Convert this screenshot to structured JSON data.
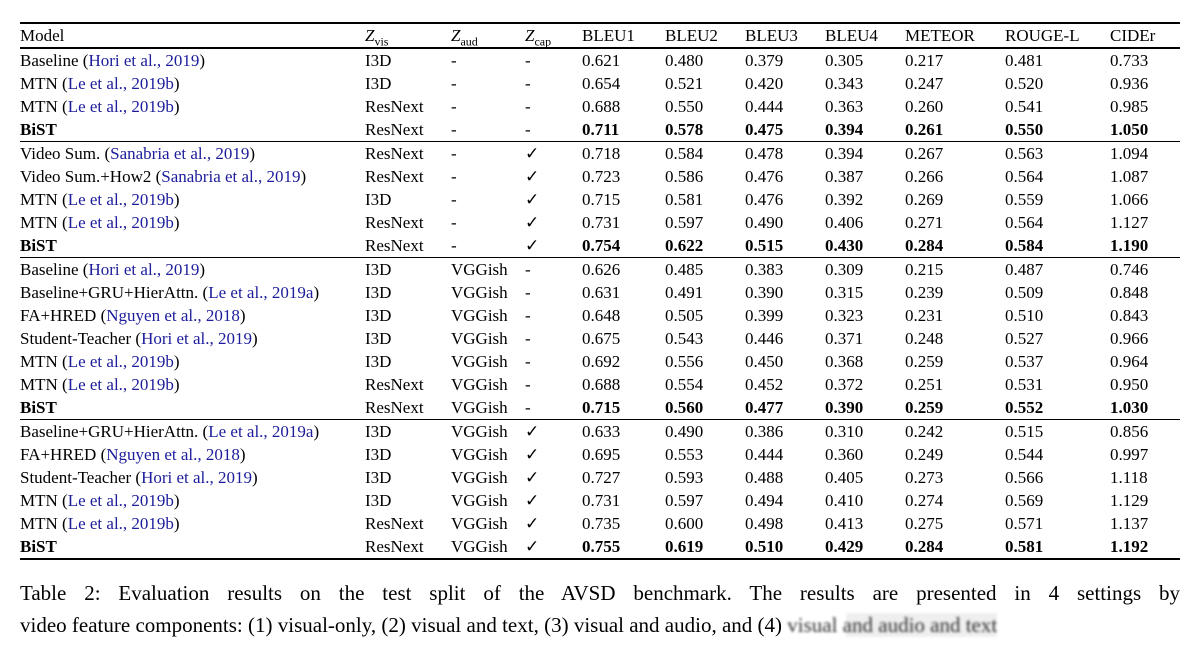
{
  "page": {
    "background": "#ffffff",
    "link_color": "#1c1c9c"
  },
  "table": {
    "header": {
      "model": "Model",
      "z_columns": [
        {
          "base": "Z",
          "sub": "vis"
        },
        {
          "base": "Z",
          "sub": "aud"
        },
        {
          "base": "Z",
          "sub": "cap"
        }
      ],
      "metrics": [
        "BLEU1",
        "BLEU2",
        "BLEU3",
        "BLEU4",
        "METEOR",
        "ROUGE-L",
        "CIDEr"
      ]
    },
    "sections": [
      {
        "name": "visual-only",
        "rows": [
          {
            "model": "Baseline",
            "cite": "Hori et al., 2019",
            "zvis": "I3D",
            "zaud": "-",
            "zcap": "-",
            "values": [
              "0.621",
              "0.480",
              "0.379",
              "0.305",
              "0.217",
              "0.481",
              "0.733"
            ],
            "bold": false
          },
          {
            "model": "MTN",
            "cite": "Le et al., 2019b",
            "zvis": "I3D",
            "zaud": "-",
            "zcap": "-",
            "values": [
              "0.654",
              "0.521",
              "0.420",
              "0.343",
              "0.247",
              "0.520",
              "0.936"
            ],
            "bold": false
          },
          {
            "model": "MTN",
            "cite": "Le et al., 2019b",
            "zvis": "ResNext",
            "zaud": "-",
            "zcap": "-",
            "values": [
              "0.688",
              "0.550",
              "0.444",
              "0.363",
              "0.260",
              "0.541",
              "0.985"
            ],
            "bold": false
          },
          {
            "model": "BiST",
            "cite": "",
            "zvis": "ResNext",
            "zaud": "-",
            "zcap": "-",
            "values": [
              "0.711",
              "0.578",
              "0.475",
              "0.394",
              "0.261",
              "0.550",
              "1.050"
            ],
            "bold": true
          }
        ]
      },
      {
        "name": "visual-and-text",
        "rows": [
          {
            "model": "Video Sum.",
            "cite": "Sanabria et al., 2019",
            "zvis": "ResNext",
            "zaud": "-",
            "zcap": "✓",
            "values": [
              "0.718",
              "0.584",
              "0.478",
              "0.394",
              "0.267",
              "0.563",
              "1.094"
            ],
            "bold": false
          },
          {
            "model": "Video Sum.+How2",
            "cite": "Sanabria et al., 2019",
            "zvis": "ResNext",
            "zaud": "-",
            "zcap": "✓",
            "values": [
              "0.723",
              "0.586",
              "0.476",
              "0.387",
              "0.266",
              "0.564",
              "1.087"
            ],
            "bold": false
          },
          {
            "model": "MTN",
            "cite": "Le et al., 2019b",
            "zvis": "I3D",
            "zaud": "-",
            "zcap": "✓",
            "values": [
              "0.715",
              "0.581",
              "0.476",
              "0.392",
              "0.269",
              "0.559",
              "1.066"
            ],
            "bold": false
          },
          {
            "model": "MTN",
            "cite": "Le et al., 2019b",
            "zvis": "ResNext",
            "zaud": "-",
            "zcap": "✓",
            "values": [
              "0.731",
              "0.597",
              "0.490",
              "0.406",
              "0.271",
              "0.564",
              "1.127"
            ],
            "bold": false
          },
          {
            "model": "BiST",
            "cite": "",
            "zvis": "ResNext",
            "zaud": "-",
            "zcap": "✓",
            "values": [
              "0.754",
              "0.622",
              "0.515",
              "0.430",
              "0.284",
              "0.584",
              "1.190"
            ],
            "bold": true
          }
        ]
      },
      {
        "name": "visual-and-audio",
        "rows": [
          {
            "model": "Baseline",
            "cite": "Hori et al., 2019",
            "zvis": "I3D",
            "zaud": "VGGish",
            "zcap": "-",
            "values": [
              "0.626",
              "0.485",
              "0.383",
              "0.309",
              "0.215",
              "0.487",
              "0.746"
            ],
            "bold": false
          },
          {
            "model": "Baseline+GRU+HierAttn.",
            "cite": "Le et al., 2019a",
            "zvis": "I3D",
            "zaud": "VGGish",
            "zcap": "-",
            "values": [
              "0.631",
              "0.491",
              "0.390",
              "0.315",
              "0.239",
              "0.509",
              "0.848"
            ],
            "bold": false
          },
          {
            "model": "FA+HRED",
            "cite": "Nguyen et al., 2018",
            "zvis": "I3D",
            "zaud": "VGGish",
            "zcap": "-",
            "values": [
              "0.648",
              "0.505",
              "0.399",
              "0.323",
              "0.231",
              "0.510",
              "0.843"
            ],
            "bold": false
          },
          {
            "model": "Student-Teacher",
            "cite": "Hori et al., 2019",
            "zvis": "I3D",
            "zaud": "VGGish",
            "zcap": "-",
            "values": [
              "0.675",
              "0.543",
              "0.446",
              "0.371",
              "0.248",
              "0.527",
              "0.966"
            ],
            "bold": false
          },
          {
            "model": "MTN",
            "cite": "Le et al., 2019b",
            "zvis": "I3D",
            "zaud": "VGGish",
            "zcap": "-",
            "values": [
              "0.692",
              "0.556",
              "0.450",
              "0.368",
              "0.259",
              "0.537",
              "0.964"
            ],
            "bold": false
          },
          {
            "model": "MTN",
            "cite": "Le et al., 2019b",
            "zvis": "ResNext",
            "zaud": "VGGish",
            "zcap": "-",
            "values": [
              "0.688",
              "0.554",
              "0.452",
              "0.372",
              "0.251",
              "0.531",
              "0.950"
            ],
            "bold": false
          },
          {
            "model": "BiST",
            "cite": "",
            "zvis": "ResNext",
            "zaud": "VGGish",
            "zcap": "-",
            "values": [
              "0.715",
              "0.560",
              "0.477",
              "0.390",
              "0.259",
              "0.552",
              "1.030"
            ],
            "bold": true
          }
        ]
      },
      {
        "name": "visual-audio-and-text",
        "rows": [
          {
            "model": "Baseline+GRU+HierAttn.",
            "cite": "Le et al., 2019a",
            "zvis": "I3D",
            "zaud": "VGGish",
            "zcap": "✓",
            "values": [
              "0.633",
              "0.490",
              "0.386",
              "0.310",
              "0.242",
              "0.515",
              "0.856"
            ],
            "bold": false
          },
          {
            "model": "FA+HRED",
            "cite": "Nguyen et al., 2018",
            "zvis": "I3D",
            "zaud": "VGGish",
            "zcap": "✓",
            "values": [
              "0.695",
              "0.553",
              "0.444",
              "0.360",
              "0.249",
              "0.544",
              "0.997"
            ],
            "bold": false
          },
          {
            "model": "Student-Teacher",
            "cite": "Hori et al., 2019",
            "zvis": "I3D",
            "zaud": "VGGish",
            "zcap": "✓",
            "values": [
              "0.727",
              "0.593",
              "0.488",
              "0.405",
              "0.273",
              "0.566",
              "1.118"
            ],
            "bold": false
          },
          {
            "model": "MTN",
            "cite": "Le et al., 2019b",
            "zvis": "I3D",
            "zaud": "VGGish",
            "zcap": "✓",
            "values": [
              "0.731",
              "0.597",
              "0.494",
              "0.410",
              "0.274",
              "0.569",
              "1.129"
            ],
            "bold": false
          },
          {
            "model": "MTN",
            "cite": "Le et al., 2019b",
            "zvis": "ResNext",
            "zaud": "VGGish",
            "zcap": "✓",
            "values": [
              "0.735",
              "0.600",
              "0.498",
              "0.413",
              "0.275",
              "0.571",
              "1.137"
            ],
            "bold": false
          },
          {
            "model": "BiST",
            "cite": "",
            "zvis": "ResNext",
            "zaud": "VGGish",
            "zcap": "✓",
            "values": [
              "0.755",
              "0.619",
              "0.510",
              "0.429",
              "0.284",
              "0.581",
              "1.192"
            ],
            "bold": true
          }
        ]
      }
    ]
  },
  "caption": {
    "line1": "Table 2:  Evaluation results on the test split of the AVSD benchmark.  The results are presented in 4 settings by",
    "line2_start": "video feature components: (1) visual-only, (2) visual and text, (3) visual and audio, and (4) ",
    "degraded_text": "visual and audio and text"
  }
}
